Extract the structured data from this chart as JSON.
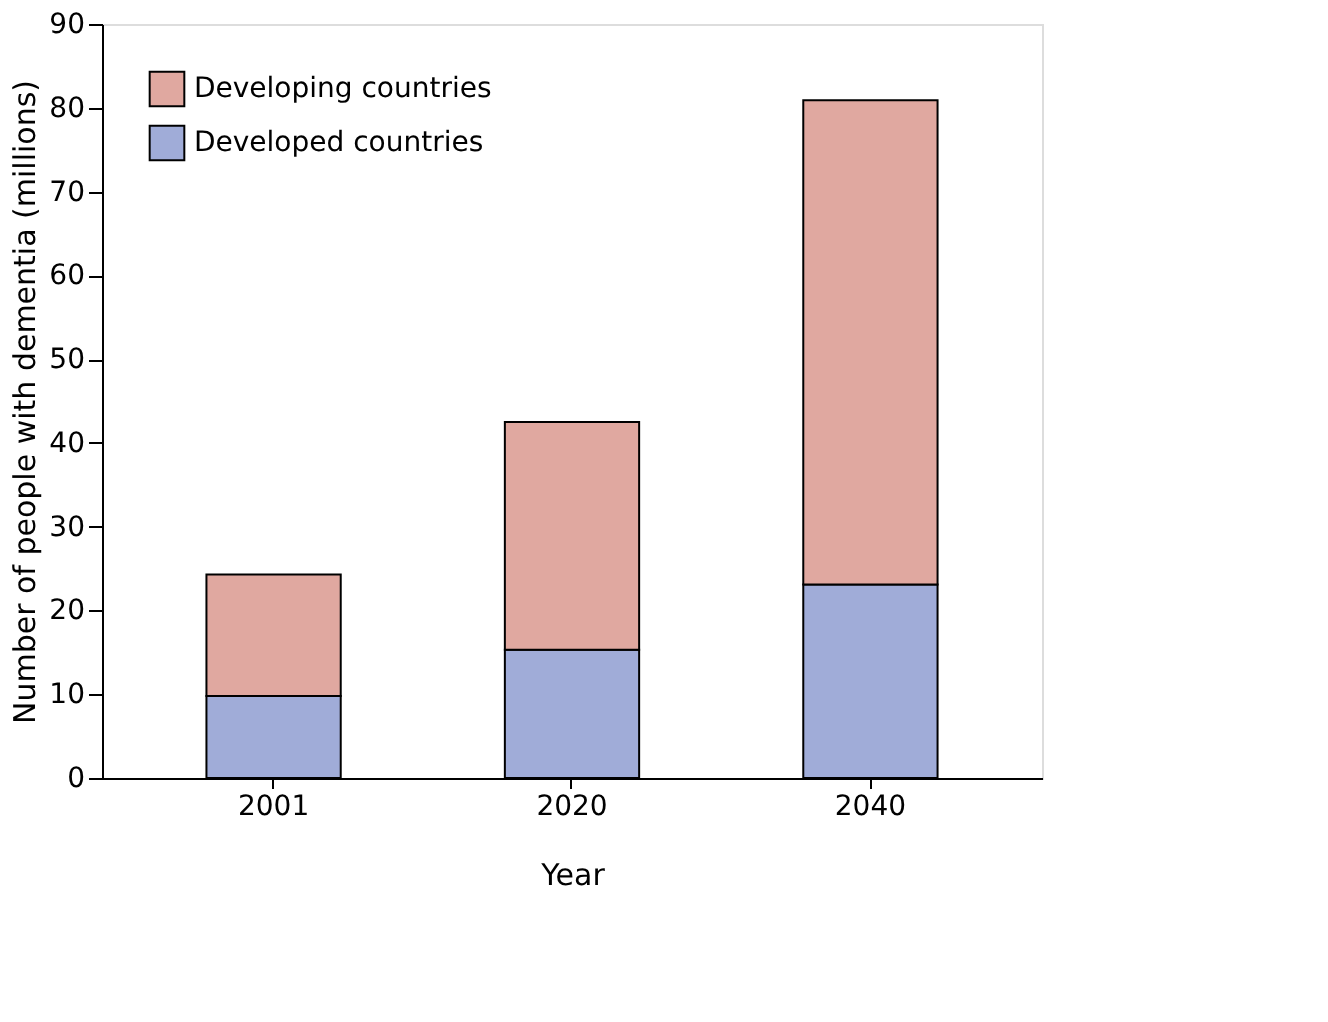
{
  "chart_data": {
    "type": "bar",
    "stacked": true,
    "xlabel": "Year",
    "ylabel": "Number of people with dementia (millions)",
    "categories": [
      "2001",
      "2020",
      "2040"
    ],
    "series": [
      {
        "name": "Developed countries",
        "color": "#a0acd8",
        "values": [
          9.8,
          15.3,
          23.1
        ]
      },
      {
        "name": "Developing countries",
        "color": "#e0a8a0",
        "values": [
          14.5,
          27.2,
          57.8
        ]
      }
    ],
    "ylim": [
      0,
      90
    ],
    "yticks": [
      0,
      10,
      20,
      30,
      40,
      50,
      60,
      70,
      80,
      90
    ],
    "grid": false,
    "legend": "top left"
  }
}
